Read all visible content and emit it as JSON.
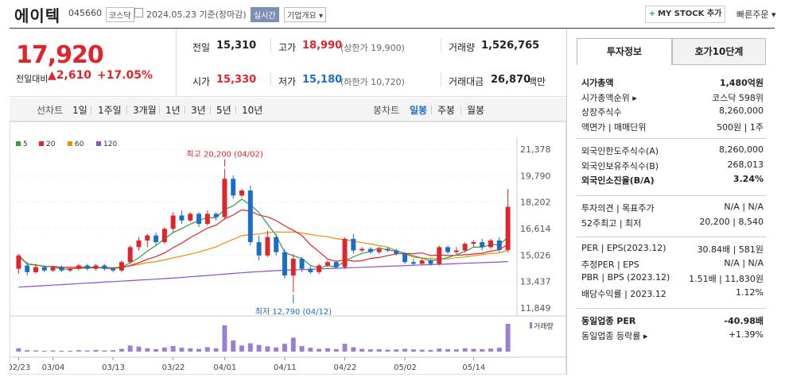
{
  "header": {
    "name": "에이텍",
    "code": "045660",
    "market": "코스닥",
    "date": "2024.05.23 기준(장마감)",
    "realtime": "실시간",
    "company": "기업개요 ▾",
    "mystock": "MY STOCK 추가",
    "mystock_plus": "+",
    "quick_order": "빠른주문 ▾"
  },
  "price": {
    "current": "17,920",
    "change_label": "전일대비",
    "change": "▲2,610",
    "change_pct": "+17.05%"
  },
  "quote": {
    "prev_close_label": "전일",
    "prev_close": "15,310",
    "high_label": "고가",
    "high": "18,990",
    "upper_limit": "(상한가 19,900)",
    "volume_label": "거래량",
    "volume": "1,526,765",
    "open_label": "시가",
    "open": "15,330",
    "low_label": "저가",
    "low": "15,180",
    "lower_limit": "(하한가 10,720)",
    "amount_label": "거래대금",
    "amount": "26,870",
    "amount_unit": "백만"
  },
  "toolbar": {
    "line_chart": "선차트",
    "periods": [
      "1일",
      "1주일",
      "3개월",
      "1년",
      "3년",
      "5년",
      "10년"
    ],
    "candle_chart": "봉차트",
    "candle_periods": [
      "일봉",
      "주봉",
      "월봉"
    ]
  },
  "chart_data": {
    "type": "candlestick",
    "legend": [
      "5",
      "20",
      "60",
      "120"
    ],
    "legend_colors": [
      "#2f9e44",
      "#e0242c",
      "#f08c00",
      "#8a4fd0"
    ],
    "yticks": [
      "21,378",
      "19,790",
      "18,202",
      "16,614",
      "15,026",
      "13,437",
      "11,849"
    ],
    "ylim": [
      11849,
      21378
    ],
    "xticks": [
      "02/23",
      "03/04",
      "03/13",
      "03/22",
      "04/01",
      "04/11",
      "04/22",
      "05/02",
      "05/14"
    ],
    "xtick_index": [
      0,
      4,
      11,
      18,
      24,
      31,
      38,
      45,
      53
    ],
    "high_annotation": "최고 20,200 (04/02)",
    "low_annotation": "최저 12,790 (04/12)",
    "volume_label": "거래량",
    "candles": [
      [
        14200,
        15000,
        13900,
        15100
      ],
      [
        14400,
        14000,
        13800,
        14600
      ],
      [
        14000,
        14300,
        13900,
        14500
      ],
      [
        14300,
        14100,
        14000,
        14400
      ],
      [
        14100,
        14300,
        14000,
        14400
      ],
      [
        14300,
        14100,
        14000,
        14400
      ],
      [
        14100,
        14200,
        14000,
        14300
      ],
      [
        14200,
        14400,
        14100,
        14500
      ],
      [
        14400,
        14200,
        14100,
        14500
      ],
      [
        14200,
        14400,
        14100,
        14500
      ],
      [
        14400,
        14200,
        14100,
        14500
      ],
      [
        14200,
        14100,
        14000,
        14300
      ],
      [
        14100,
        14600,
        14000,
        14700
      ],
      [
        14600,
        15500,
        14500,
        15600
      ],
      [
        15500,
        15900,
        15300,
        16100
      ],
      [
        15900,
        16200,
        15500,
        16300
      ],
      [
        16200,
        15800,
        15600,
        16400
      ],
      [
        15800,
        16600,
        15700,
        16700
      ],
      [
        16600,
        17400,
        16400,
        17600
      ],
      [
        17400,
        17100,
        16900,
        17700
      ],
      [
        17100,
        17500,
        17000,
        17600
      ],
      [
        17500,
        16900,
        16700,
        17600
      ],
      [
        16900,
        17500,
        16800,
        17700
      ],
      [
        17500,
        17300,
        17100,
        17600
      ],
      [
        17300,
        19600,
        17200,
        20200
      ],
      [
        19600,
        18600,
        18400,
        19800
      ],
      [
        18600,
        18900,
        18500,
        19000
      ],
      [
        18900,
        15800,
        15600,
        19200
      ],
      [
        15800,
        15000,
        14700,
        16200
      ],
      [
        15000,
        16100,
        14900,
        16500
      ],
      [
        16100,
        15200,
        15000,
        16300
      ],
      [
        15200,
        13800,
        13600,
        15400
      ],
      [
        13800,
        14800,
        12790,
        15100
      ],
      [
        14800,
        14200,
        14000,
        14900
      ],
      [
        14200,
        14000,
        13900,
        14400
      ],
      [
        14000,
        14400,
        13900,
        14500
      ],
      [
        14400,
        14600,
        14300,
        14700
      ],
      [
        14600,
        14300,
        14200,
        14700
      ],
      [
        14300,
        16000,
        14200,
        16100
      ],
      [
        16000,
        15300,
        15100,
        16300
      ],
      [
        15300,
        15400,
        15200,
        15500
      ],
      [
        15400,
        15200,
        15100,
        15500
      ],
      [
        15200,
        15400,
        15100,
        15500
      ],
      [
        15400,
        15300,
        15200,
        15500
      ],
      [
        15300,
        15100,
        15000,
        15400
      ],
      [
        15100,
        14600,
        14500,
        15200
      ],
      [
        14600,
        14500,
        14400,
        14800
      ],
      [
        14500,
        14700,
        14400,
        14800
      ],
      [
        14700,
        14500,
        14400,
        14800
      ],
      [
        14500,
        15500,
        14400,
        15600
      ],
      [
        15500,
        15200,
        15100,
        15600
      ],
      [
        15200,
        15300,
        15100,
        15500
      ],
      [
        15300,
        15700,
        15200,
        15800
      ],
      [
        15700,
        15800,
        15500,
        15900
      ],
      [
        15800,
        15500,
        15300,
        16000
      ],
      [
        15500,
        15900,
        15400,
        16000
      ],
      [
        15900,
        15330,
        15200,
        16100
      ],
      [
        15330,
        17920,
        15180,
        18990
      ]
    ],
    "volumes": [
      12,
      5,
      4,
      3,
      4,
      3,
      3,
      5,
      4,
      6,
      4,
      5,
      10,
      22,
      18,
      12,
      9,
      15,
      20,
      14,
      12,
      10,
      16,
      12,
      95,
      40,
      22,
      30,
      24,
      19,
      15,
      28,
      50,
      20,
      14,
      10,
      12,
      9,
      28,
      16,
      10,
      8,
      9,
      7,
      8,
      10,
      8,
      7,
      6,
      11,
      9,
      8,
      12,
      10,
      9,
      11,
      14,
      100
    ],
    "ma120": [
      13100,
      13130,
      13160,
      13190,
      13220,
      13250,
      13280,
      13310,
      13340,
      13370,
      13400,
      13430,
      13460,
      13490,
      13520,
      13550,
      13580,
      13610,
      13640,
      13680,
      13720,
      13760,
      13800,
      13840,
      13880,
      13920,
      13960,
      14000,
      14030,
      14060,
      14090,
      14110,
      14130,
      14150,
      14170,
      14190,
      14210,
      14230,
      14250,
      14270,
      14290,
      14310,
      14330,
      14350,
      14370,
      14390,
      14410,
      14430,
      14450,
      14470,
      14490,
      14510,
      14530,
      14550,
      14570,
      14590,
      14610,
      14630
    ]
  },
  "investment": {
    "tab_invest": "투자정보",
    "tab_hoga": "호가10단계",
    "rows1": [
      {
        "label": "시가총액",
        "value": "1,480억원",
        "bold": true
      },
      {
        "label": "시가총액순위 ▸",
        "value": "코스닥 598위"
      },
      {
        "label": "상장주식수",
        "value": "8,260,000"
      },
      {
        "label": "액면가 | 매매단위",
        "value": "500원 | 1주"
      }
    ],
    "rows2": [
      {
        "label": "외국인한도주식수(A)",
        "value": "8,260,000"
      },
      {
        "label": "외국인보유주식수(B)",
        "value": "268,013"
      },
      {
        "label": "외국인소진율(B/A)",
        "value": "3.24%",
        "bold": true
      }
    ],
    "rows3": [
      {
        "label": "투자의견 | 목표주가",
        "value": "N/A | N/A"
      },
      {
        "label": "52주최고 | 최저",
        "value": "20,200 | 8,540"
      }
    ],
    "rows4": [
      {
        "label": "PER | EPS(2023.12)",
        "value": "30.84배 | 581원"
      },
      {
        "label": "추정PER | EPS",
        "value": "N/A | N/A"
      },
      {
        "label": "PBR | BPS (2023.12)",
        "value": "1.51배 | 11,830원"
      },
      {
        "label": "배당수익률 | 2023.12",
        "value": "1.12%"
      }
    ],
    "rows5": [
      {
        "label": "동일업종 PER",
        "value": "-40.98배",
        "bold": true
      },
      {
        "label": "동일업종 등락률 ▸",
        "value": "+1.39%",
        "red": true
      }
    ]
  }
}
